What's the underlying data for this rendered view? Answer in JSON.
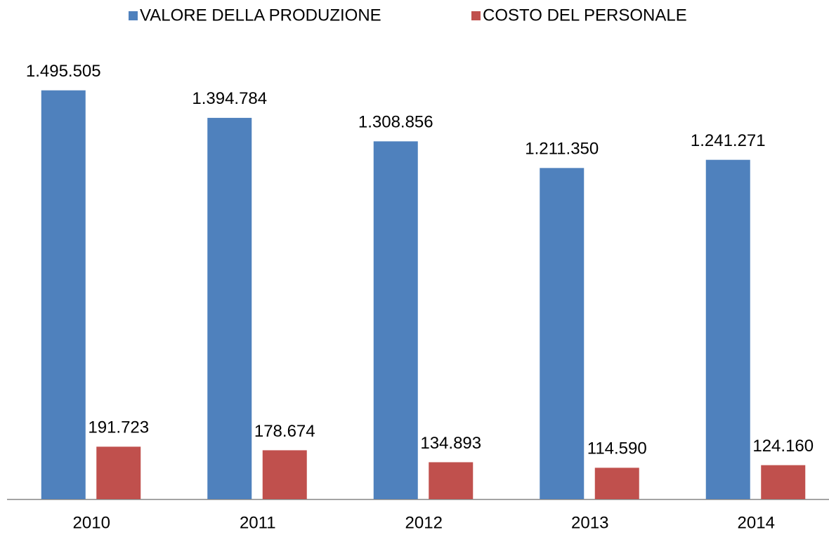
{
  "chart_data": {
    "type": "bar",
    "categories": [
      "2010",
      "2011",
      "2012",
      "2013",
      "2014"
    ],
    "series": [
      {
        "name": "VALORE DELLA PRODUZIONE",
        "color": "#4f81bd",
        "values": [
          1495505,
          1394784,
          1308856,
          1211350,
          1241271
        ],
        "value_labels": [
          "1.495.505",
          "1.394.784",
          "1.308.856",
          "1.211.350",
          "1.241.271"
        ]
      },
      {
        "name": "COSTO DEL PERSONALE",
        "color": "#c0504d",
        "values": [
          191723,
          178674,
          134893,
          114590,
          124160
        ],
        "value_labels": [
          "191.723",
          "178.674",
          "134.893",
          "114.590",
          "124.160"
        ]
      }
    ],
    "ylim": [
      0,
      1600000
    ],
    "legend": "top"
  }
}
